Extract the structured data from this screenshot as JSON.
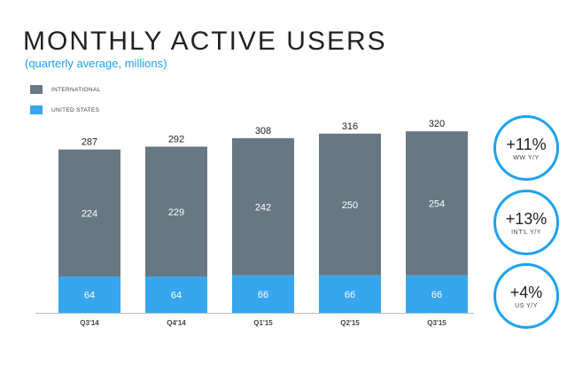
{
  "chart_data": {
    "type": "bar",
    "stacked": true,
    "title": "MONTHLY ACTIVE USERS",
    "subtitle": "(quarterly average, millions)",
    "categories": [
      "Q3'14",
      "Q4'14",
      "Q1'15",
      "Q2'15",
      "Q3'15"
    ],
    "series": [
      {
        "name": "UNITED STATES",
        "color": "#37a6ee",
        "values": [
          64,
          64,
          66,
          66,
          66
        ]
      },
      {
        "name": "INTERNATIONAL",
        "color": "#677883",
        "values": [
          224,
          229,
          242,
          250,
          254
        ]
      }
    ],
    "totals": [
      287,
      292,
      308,
      316,
      320
    ],
    "ylim": [
      0,
      320
    ],
    "grid": false,
    "legend_position": "top-left",
    "legend_order": [
      "INTERNATIONAL",
      "UNITED STATES"
    ]
  },
  "legend": {
    "items": [
      {
        "label": "INTERNATIONAL",
        "color": "#677883"
      },
      {
        "label": "UNITED STATES",
        "color": "#37a6ee"
      }
    ]
  },
  "growth": [
    {
      "value": "+11%",
      "label": "WW Y/Y"
    },
    {
      "value": "+13%",
      "label": "INT'L Y/Y"
    },
    {
      "value": "+4%",
      "label": "US Y/Y"
    }
  ],
  "colors": {
    "accent": "#1da1f2",
    "international": "#677883",
    "us": "#37a6ee"
  }
}
